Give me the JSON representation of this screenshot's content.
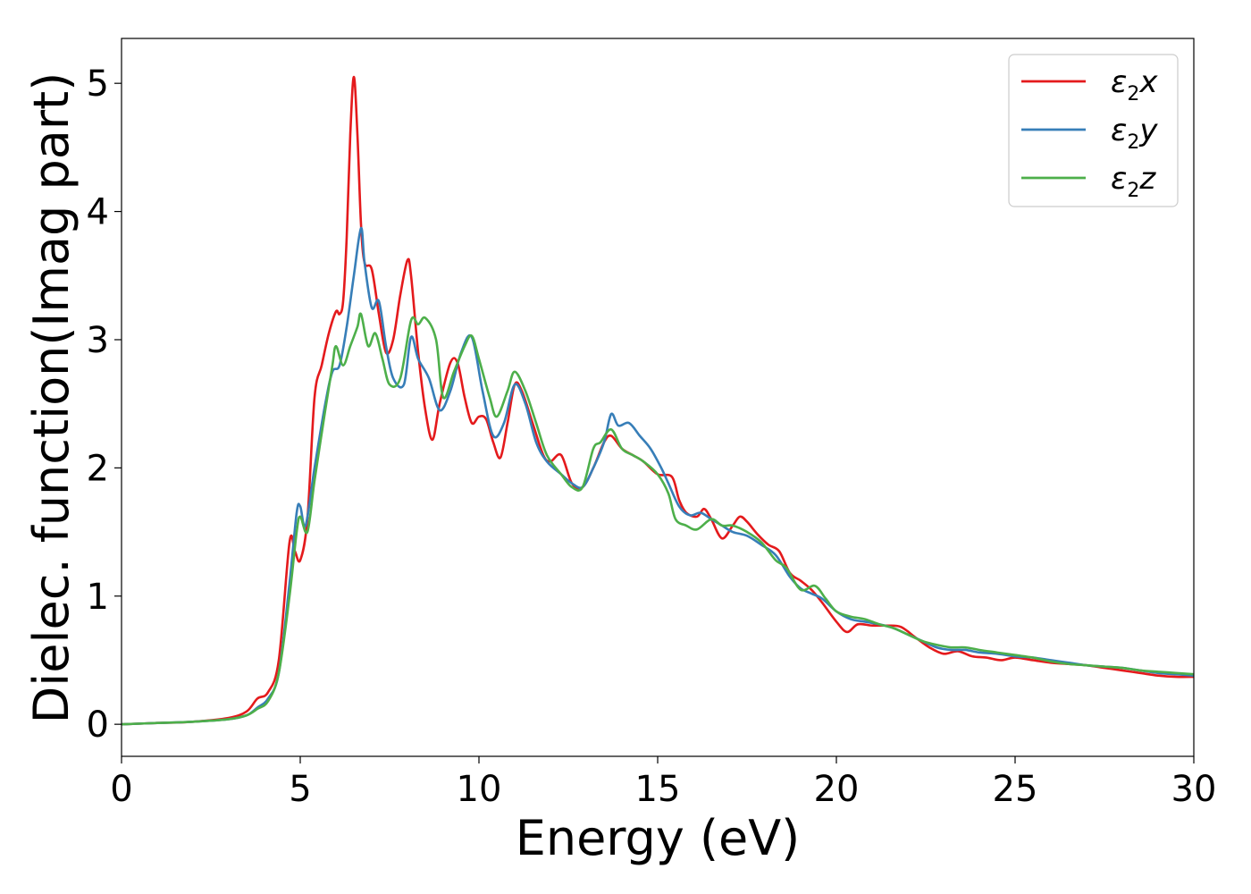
{
  "chart_data": {
    "type": "line",
    "xlabel": "Energy (eV)",
    "ylabel": "Dielec. function(Imag part)",
    "xlim": [
      0,
      30
    ],
    "ylim": [
      -0.25,
      5.35
    ],
    "xticks": [
      0,
      5,
      10,
      15,
      20,
      25,
      30
    ],
    "yticks": [
      0,
      1,
      2,
      3,
      4,
      5
    ],
    "grid": false,
    "legend_position": "top-right",
    "series": [
      {
        "name": "ε2x",
        "legend": {
          "symbol": "ε",
          "sub": "2",
          "var": "x"
        },
        "color": "#e41a1c",
        "points": [
          [
            0,
            0.0
          ],
          [
            1,
            0.01
          ],
          [
            2,
            0.02
          ],
          [
            3,
            0.05
          ],
          [
            3.5,
            0.1
          ],
          [
            3.8,
            0.2
          ],
          [
            4.1,
            0.25
          ],
          [
            4.4,
            0.5
          ],
          [
            4.7,
            1.42
          ],
          [
            4.85,
            1.35
          ],
          [
            5.0,
            1.28
          ],
          [
            5.2,
            1.6
          ],
          [
            5.4,
            2.55
          ],
          [
            5.6,
            2.8
          ],
          [
            5.8,
            3.05
          ],
          [
            6.0,
            3.22
          ],
          [
            6.1,
            3.2
          ],
          [
            6.2,
            3.3
          ],
          [
            6.3,
            3.8
          ],
          [
            6.4,
            4.6
          ],
          [
            6.5,
            5.05
          ],
          [
            6.6,
            4.6
          ],
          [
            6.7,
            3.9
          ],
          [
            6.8,
            3.6
          ],
          [
            7.0,
            3.55
          ],
          [
            7.2,
            3.2
          ],
          [
            7.4,
            2.9
          ],
          [
            7.6,
            3.0
          ],
          [
            7.8,
            3.35
          ],
          [
            8.0,
            3.62
          ],
          [
            8.1,
            3.5
          ],
          [
            8.3,
            2.9
          ],
          [
            8.5,
            2.45
          ],
          [
            8.7,
            2.22
          ],
          [
            8.9,
            2.5
          ],
          [
            9.2,
            2.82
          ],
          [
            9.4,
            2.82
          ],
          [
            9.6,
            2.55
          ],
          [
            9.8,
            2.35
          ],
          [
            10.0,
            2.4
          ],
          [
            10.2,
            2.38
          ],
          [
            10.4,
            2.2
          ],
          [
            10.6,
            2.08
          ],
          [
            10.8,
            2.35
          ],
          [
            11.0,
            2.65
          ],
          [
            11.2,
            2.6
          ],
          [
            11.5,
            2.35
          ],
          [
            11.8,
            2.1
          ],
          [
            12.0,
            2.05
          ],
          [
            12.3,
            2.1
          ],
          [
            12.6,
            1.88
          ],
          [
            12.9,
            1.85
          ],
          [
            13.2,
            2.0
          ],
          [
            13.5,
            2.2
          ],
          [
            13.7,
            2.25
          ],
          [
            14.0,
            2.15
          ],
          [
            14.3,
            2.1
          ],
          [
            14.6,
            2.05
          ],
          [
            15.0,
            1.95
          ],
          [
            15.4,
            1.93
          ],
          [
            15.6,
            1.75
          ],
          [
            15.8,
            1.65
          ],
          [
            16.1,
            1.62
          ],
          [
            16.3,
            1.68
          ],
          [
            16.5,
            1.6
          ],
          [
            16.8,
            1.45
          ],
          [
            17.1,
            1.55
          ],
          [
            17.3,
            1.62
          ],
          [
            17.5,
            1.58
          ],
          [
            17.8,
            1.48
          ],
          [
            18.1,
            1.4
          ],
          [
            18.4,
            1.35
          ],
          [
            18.7,
            1.18
          ],
          [
            19.0,
            1.12
          ],
          [
            19.3,
            1.05
          ],
          [
            19.6,
            0.95
          ],
          [
            20.0,
            0.8
          ],
          [
            20.3,
            0.72
          ],
          [
            20.6,
            0.78
          ],
          [
            21.0,
            0.77
          ],
          [
            21.4,
            0.77
          ],
          [
            21.8,
            0.76
          ],
          [
            22.2,
            0.68
          ],
          [
            22.6,
            0.6
          ],
          [
            23.0,
            0.55
          ],
          [
            23.4,
            0.57
          ],
          [
            23.8,
            0.53
          ],
          [
            24.2,
            0.52
          ],
          [
            24.6,
            0.5
          ],
          [
            25.0,
            0.52
          ],
          [
            25.5,
            0.5
          ],
          [
            26.0,
            0.48
          ],
          [
            26.5,
            0.47
          ],
          [
            27.0,
            0.46
          ],
          [
            27.5,
            0.44
          ],
          [
            28.0,
            0.42
          ],
          [
            28.5,
            0.4
          ],
          [
            29.0,
            0.38
          ],
          [
            29.5,
            0.37
          ],
          [
            30.0,
            0.37
          ]
        ]
      },
      {
        "name": "ε2y",
        "legend": {
          "symbol": "ε",
          "sub": "2",
          "var": "y"
        },
        "color": "#377eb8",
        "points": [
          [
            0,
            0.0
          ],
          [
            1,
            0.01
          ],
          [
            2,
            0.02
          ],
          [
            3,
            0.04
          ],
          [
            3.5,
            0.07
          ],
          [
            3.8,
            0.13
          ],
          [
            4.1,
            0.2
          ],
          [
            4.4,
            0.4
          ],
          [
            4.7,
            1.1
          ],
          [
            4.9,
            1.65
          ],
          [
            5.0,
            1.7
          ],
          [
            5.15,
            1.55
          ],
          [
            5.4,
            2.0
          ],
          [
            5.7,
            2.5
          ],
          [
            5.9,
            2.75
          ],
          [
            6.1,
            2.8
          ],
          [
            6.3,
            3.1
          ],
          [
            6.5,
            3.5
          ],
          [
            6.7,
            3.87
          ],
          [
            6.8,
            3.6
          ],
          [
            7.0,
            3.25
          ],
          [
            7.2,
            3.3
          ],
          [
            7.4,
            2.95
          ],
          [
            7.6,
            2.7
          ],
          [
            7.9,
            2.65
          ],
          [
            8.1,
            3.02
          ],
          [
            8.3,
            2.85
          ],
          [
            8.6,
            2.7
          ],
          [
            8.9,
            2.45
          ],
          [
            9.2,
            2.6
          ],
          [
            9.5,
            2.9
          ],
          [
            9.8,
            3.02
          ],
          [
            10.1,
            2.6
          ],
          [
            10.4,
            2.25
          ],
          [
            10.7,
            2.35
          ],
          [
            11.0,
            2.65
          ],
          [
            11.3,
            2.5
          ],
          [
            11.6,
            2.2
          ],
          [
            11.9,
            2.05
          ],
          [
            12.3,
            1.95
          ],
          [
            12.6,
            1.88
          ],
          [
            12.9,
            1.85
          ],
          [
            13.2,
            2.0
          ],
          [
            13.5,
            2.2
          ],
          [
            13.7,
            2.42
          ],
          [
            13.9,
            2.33
          ],
          [
            14.2,
            2.35
          ],
          [
            14.5,
            2.25
          ],
          [
            14.8,
            2.15
          ],
          [
            15.1,
            2.0
          ],
          [
            15.3,
            1.88
          ],
          [
            15.6,
            1.7
          ],
          [
            15.9,
            1.63
          ],
          [
            16.2,
            1.65
          ],
          [
            16.5,
            1.6
          ],
          [
            16.8,
            1.55
          ],
          [
            17.1,
            1.5
          ],
          [
            17.5,
            1.47
          ],
          [
            17.9,
            1.4
          ],
          [
            18.3,
            1.32
          ],
          [
            18.7,
            1.15
          ],
          [
            19.0,
            1.06
          ],
          [
            19.3,
            1.02
          ],
          [
            19.6,
            0.98
          ],
          [
            20.0,
            0.88
          ],
          [
            20.4,
            0.82
          ],
          [
            20.8,
            0.8
          ],
          [
            21.2,
            0.78
          ],
          [
            21.6,
            0.75
          ],
          [
            22.0,
            0.7
          ],
          [
            22.4,
            0.65
          ],
          [
            22.8,
            0.6
          ],
          [
            23.2,
            0.58
          ],
          [
            23.6,
            0.58
          ],
          [
            24.0,
            0.56
          ],
          [
            24.5,
            0.55
          ],
          [
            25.0,
            0.53
          ],
          [
            25.5,
            0.52
          ],
          [
            26.0,
            0.5
          ],
          [
            26.5,
            0.48
          ],
          [
            27.0,
            0.46
          ],
          [
            27.5,
            0.45
          ],
          [
            28.0,
            0.44
          ],
          [
            28.5,
            0.42
          ],
          [
            29.0,
            0.4
          ],
          [
            29.5,
            0.39
          ],
          [
            30.0,
            0.38
          ]
        ]
      },
      {
        "name": "ε2z",
        "legend": {
          "symbol": "ε",
          "sub": "2",
          "var": "z"
        },
        "color": "#4daf4a",
        "points": [
          [
            0,
            0.0
          ],
          [
            1,
            0.01
          ],
          [
            2,
            0.02
          ],
          [
            3,
            0.04
          ],
          [
            3.5,
            0.07
          ],
          [
            3.8,
            0.12
          ],
          [
            4.1,
            0.18
          ],
          [
            4.4,
            0.4
          ],
          [
            4.7,
            1.0
          ],
          [
            4.9,
            1.5
          ],
          [
            5.0,
            1.62
          ],
          [
            5.2,
            1.5
          ],
          [
            5.4,
            1.9
          ],
          [
            5.7,
            2.45
          ],
          [
            5.9,
            2.8
          ],
          [
            6.0,
            2.95
          ],
          [
            6.2,
            2.8
          ],
          [
            6.4,
            2.95
          ],
          [
            6.6,
            3.1
          ],
          [
            6.7,
            3.2
          ],
          [
            6.9,
            2.95
          ],
          [
            7.1,
            3.05
          ],
          [
            7.3,
            2.85
          ],
          [
            7.5,
            2.65
          ],
          [
            7.8,
            2.7
          ],
          [
            8.1,
            3.15
          ],
          [
            8.3,
            3.12
          ],
          [
            8.5,
            3.17
          ],
          [
            8.8,
            3.0
          ],
          [
            9.0,
            2.55
          ],
          [
            9.3,
            2.75
          ],
          [
            9.6,
            2.95
          ],
          [
            9.8,
            3.03
          ],
          [
            10.0,
            2.85
          ],
          [
            10.3,
            2.55
          ],
          [
            10.5,
            2.4
          ],
          [
            10.8,
            2.6
          ],
          [
            11.0,
            2.75
          ],
          [
            11.3,
            2.6
          ],
          [
            11.6,
            2.35
          ],
          [
            11.9,
            2.1
          ],
          [
            12.3,
            1.95
          ],
          [
            12.6,
            1.85
          ],
          [
            12.9,
            1.85
          ],
          [
            13.2,
            2.15
          ],
          [
            13.4,
            2.2
          ],
          [
            13.7,
            2.3
          ],
          [
            14.0,
            2.15
          ],
          [
            14.3,
            2.1
          ],
          [
            14.6,
            2.05
          ],
          [
            15.0,
            1.95
          ],
          [
            15.3,
            1.8
          ],
          [
            15.5,
            1.6
          ],
          [
            15.8,
            1.55
          ],
          [
            16.1,
            1.52
          ],
          [
            16.5,
            1.6
          ],
          [
            16.8,
            1.55
          ],
          [
            17.1,
            1.55
          ],
          [
            17.5,
            1.5
          ],
          [
            17.9,
            1.42
          ],
          [
            18.3,
            1.28
          ],
          [
            18.6,
            1.22
          ],
          [
            19.0,
            1.05
          ],
          [
            19.4,
            1.08
          ],
          [
            19.7,
            0.98
          ],
          [
            20.0,
            0.88
          ],
          [
            20.4,
            0.84
          ],
          [
            20.8,
            0.82
          ],
          [
            21.2,
            0.78
          ],
          [
            21.6,
            0.75
          ],
          [
            22.0,
            0.7
          ],
          [
            22.4,
            0.65
          ],
          [
            22.8,
            0.62
          ],
          [
            23.2,
            0.6
          ],
          [
            23.6,
            0.6
          ],
          [
            24.0,
            0.58
          ],
          [
            24.5,
            0.56
          ],
          [
            25.0,
            0.54
          ],
          [
            25.5,
            0.52
          ],
          [
            26.0,
            0.49
          ],
          [
            26.5,
            0.47
          ],
          [
            27.0,
            0.46
          ],
          [
            27.5,
            0.45
          ],
          [
            28.0,
            0.44
          ],
          [
            28.5,
            0.42
          ],
          [
            29.0,
            0.41
          ],
          [
            29.5,
            0.4
          ],
          [
            30.0,
            0.39
          ]
        ]
      }
    ]
  }
}
